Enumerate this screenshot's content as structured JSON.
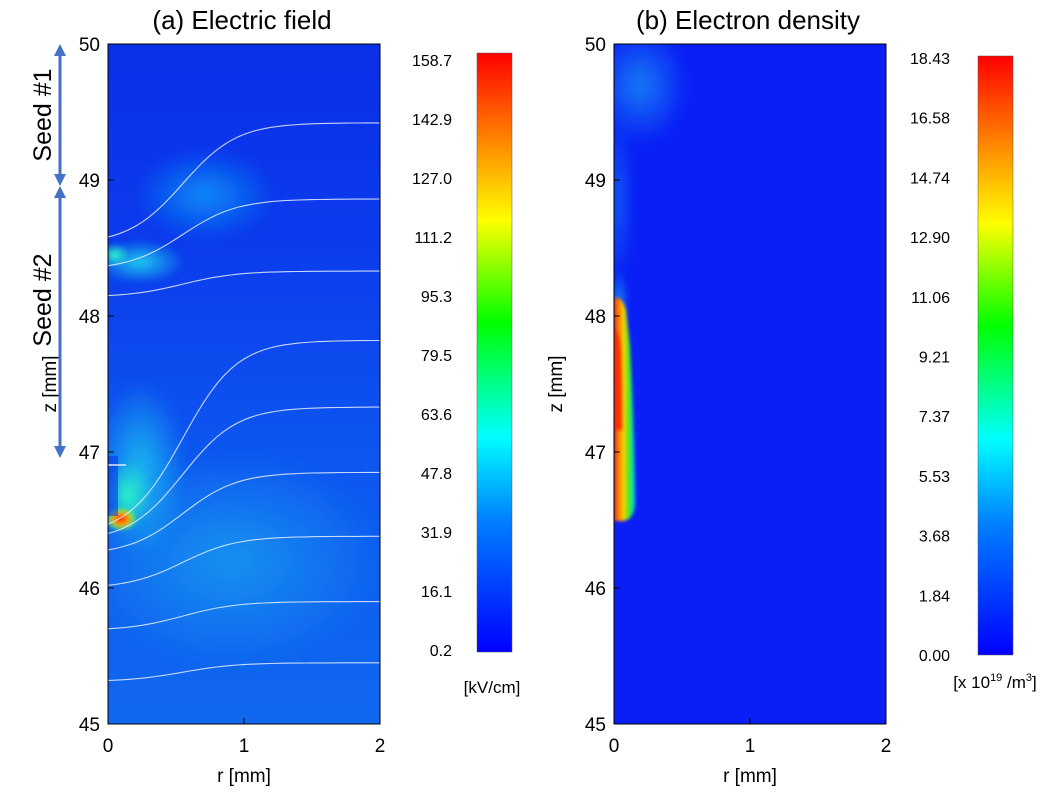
{
  "chart_data": [
    {
      "type": "heatmap",
      "title": "(a) Electric field",
      "xlabel": "r [mm]",
      "ylabel": "z [mm]",
      "xlim": [
        0,
        2
      ],
      "ylim": [
        45,
        50
      ],
      "x_ticks": [
        "0",
        "1",
        "2"
      ],
      "y_ticks": [
        "45",
        "46",
        "47",
        "48",
        "49",
        "50"
      ],
      "colorbar": {
        "ticks": [
          "0.2",
          "16.1",
          "31.9",
          "47.8",
          "63.6",
          "79.5",
          "95.3",
          "111.2",
          "127.0",
          "142.9",
          "158.7"
        ],
        "min": 0.2,
        "max": 158.7,
        "unit": "[kV/cm]"
      },
      "annotations": [
        {
          "text": "Seed #1",
          "z_range": [
            49,
            50
          ]
        },
        {
          "text": "Seed #2",
          "z_range": [
            47,
            49
          ]
        }
      ],
      "equipotential_lines": [
        {
          "z_far": 45.45,
          "z_axis": 45.32
        },
        {
          "z_far": 45.9,
          "z_axis": 45.7
        },
        {
          "z_far": 46.38,
          "z_axis": 46.02
        },
        {
          "z_far": 46.85,
          "z_axis": 46.28
        },
        {
          "z_far": 47.33,
          "z_axis": 46.4
        },
        {
          "z_far": 47.82,
          "z_axis": 46.47
        },
        {
          "z_far": 48.33,
          "z_axis": 48.15
        },
        {
          "z_far": 48.86,
          "z_axis": 48.37
        },
        {
          "z_far": 49.42,
          "z_axis": 48.58
        }
      ]
    },
    {
      "type": "heatmap",
      "title": "(b) Electron density",
      "xlabel": "r [mm]",
      "ylabel": "z [mm]",
      "xlim": [
        0,
        2
      ],
      "ylim": [
        45,
        50
      ],
      "x_ticks": [
        "0",
        "1",
        "2"
      ],
      "y_ticks": [
        "45",
        "46",
        "47",
        "48",
        "49",
        "50"
      ],
      "colorbar": {
        "ticks": [
          "0.00",
          "1.84",
          "3.68",
          "5.53",
          "7.37",
          "9.21",
          "11.06",
          "12.90",
          "14.74",
          "16.58",
          "18.43"
        ],
        "min": 0.0,
        "max": 18.43,
        "unit_prefix": "[x 10",
        "unit_exponent": "19",
        "unit_mid": " /m",
        "unit_sup": "3",
        "unit_suffix": "]"
      }
    }
  ]
}
